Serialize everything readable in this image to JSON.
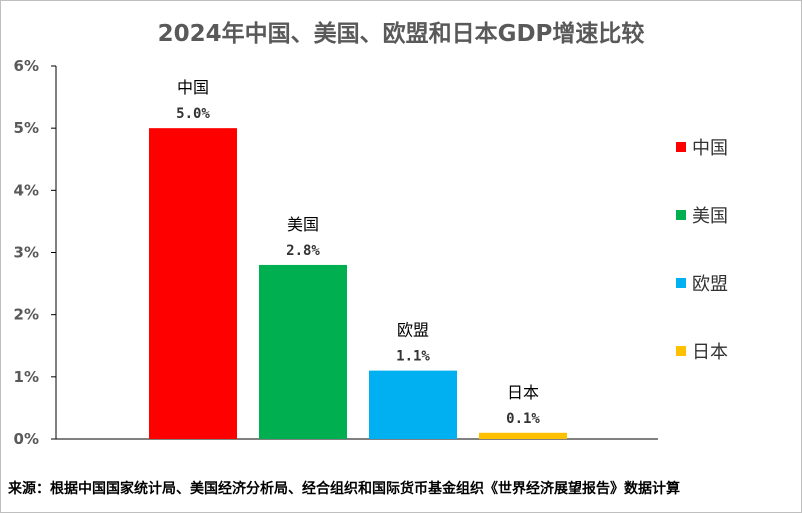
{
  "chart_data": {
    "type": "bar",
    "title": "2024年中国、美国、欧盟和日本GDP增速比较",
    "categories": [
      "中国",
      "美国",
      "欧盟",
      "日本"
    ],
    "values": [
      5.0,
      2.8,
      1.1,
      0.1
    ],
    "value_labels": [
      "5.0%",
      "2.8%",
      "1.1%",
      "0.1%"
    ],
    "colors": [
      "#ff0000",
      "#00b050",
      "#00b0f0",
      "#ffc000"
    ],
    "ylim": [
      0,
      6
    ],
    "yticks": [
      0,
      1,
      2,
      3,
      4,
      5,
      6
    ],
    "ytick_labels": [
      "0%",
      "1%",
      "2%",
      "3%",
      "4%",
      "5%",
      "6%"
    ],
    "xlabel": "",
    "ylabel": "",
    "grid": false,
    "legend": {
      "position": "right",
      "entries": [
        "中国",
        "美国",
        "欧盟",
        "日本"
      ]
    }
  },
  "source_note": "来源：根据中国国家统计局、美国经济分析局、经合组织和国际货币基金组织《世界经济展望报告》数据计算"
}
